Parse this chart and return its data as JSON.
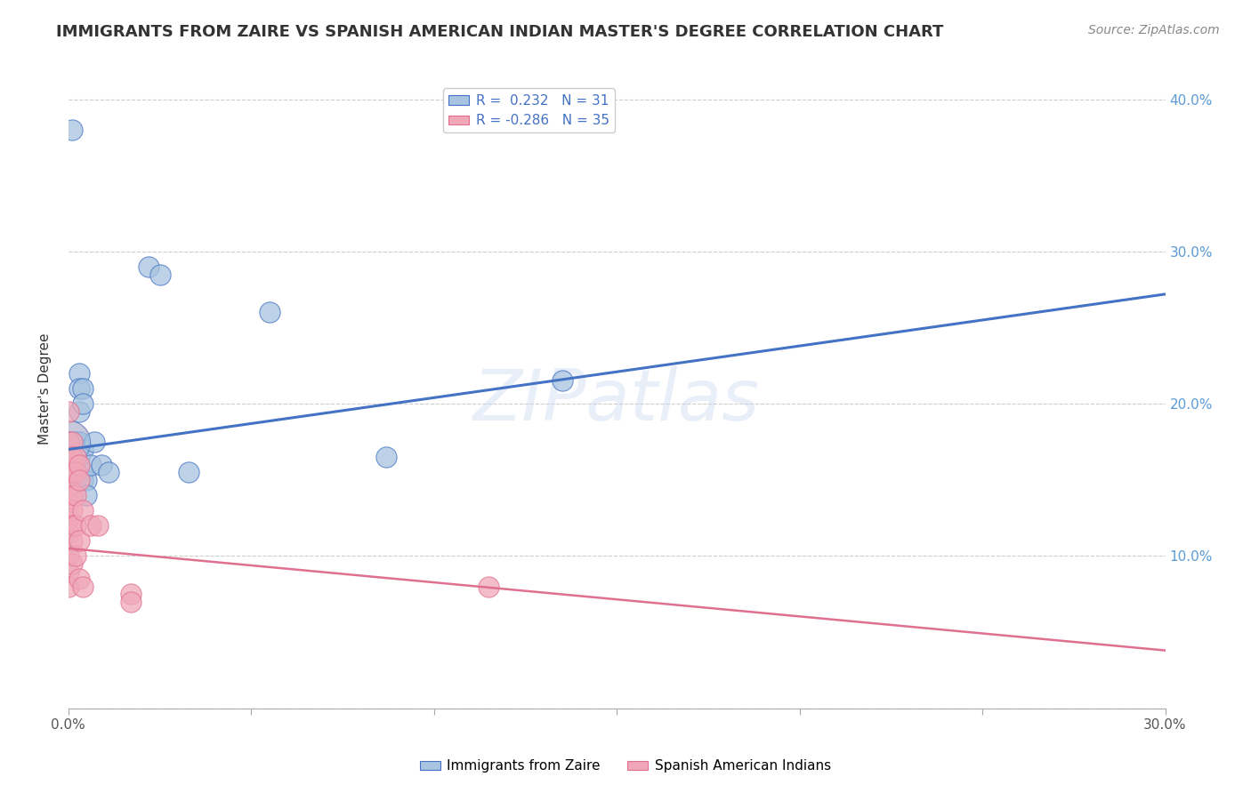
{
  "title": "IMMIGRANTS FROM ZAIRE VS SPANISH AMERICAN INDIAN MASTER'S DEGREE CORRELATION CHART",
  "source": "Source: ZipAtlas.com",
  "ylabel": "Master's Degree",
  "xlim": [
    0.0,
    0.3
  ],
  "ylim": [
    0.0,
    0.42
  ],
  "r_blue": 0.232,
  "n_blue": 31,
  "r_pink": -0.286,
  "n_pink": 35,
  "blue_color": "#a8c4e0",
  "pink_color": "#f0a8b8",
  "line_blue": "#4472c4",
  "line_pink": "#e07090",
  "legend_label_blue": "Immigrants from Zaire",
  "legend_label_pink": "Spanish American Indians",
  "blue_points": [
    [
      0.0,
      0.175
    ],
    [
      0.001,
      0.175
    ],
    [
      0.001,
      0.17
    ],
    [
      0.001,
      0.165
    ],
    [
      0.002,
      0.175
    ],
    [
      0.002,
      0.17
    ],
    [
      0.002,
      0.165
    ],
    [
      0.002,
      0.155
    ],
    [
      0.003,
      0.22
    ],
    [
      0.003,
      0.21
    ],
    [
      0.003,
      0.195
    ],
    [
      0.003,
      0.175
    ],
    [
      0.003,
      0.165
    ],
    [
      0.004,
      0.21
    ],
    [
      0.004,
      0.2
    ],
    [
      0.004,
      0.17
    ],
    [
      0.004,
      0.155
    ],
    [
      0.004,
      0.15
    ],
    [
      0.005,
      0.15
    ],
    [
      0.005,
      0.14
    ],
    [
      0.006,
      0.16
    ],
    [
      0.007,
      0.175
    ],
    [
      0.009,
      0.16
    ],
    [
      0.011,
      0.155
    ],
    [
      0.022,
      0.29
    ],
    [
      0.025,
      0.285
    ],
    [
      0.033,
      0.155
    ],
    [
      0.055,
      0.26
    ],
    [
      0.087,
      0.165
    ],
    [
      0.135,
      0.215
    ],
    [
      0.001,
      0.38
    ]
  ],
  "pink_points": [
    [
      0.0,
      0.195
    ],
    [
      0.0,
      0.175
    ],
    [
      0.0,
      0.165
    ],
    [
      0.0,
      0.155
    ],
    [
      0.0,
      0.145
    ],
    [
      0.0,
      0.135
    ],
    [
      0.0,
      0.125
    ],
    [
      0.0,
      0.115
    ],
    [
      0.0,
      0.1
    ],
    [
      0.0,
      0.09
    ],
    [
      0.0,
      0.08
    ],
    [
      0.001,
      0.175
    ],
    [
      0.001,
      0.165
    ],
    [
      0.001,
      0.155
    ],
    [
      0.001,
      0.14
    ],
    [
      0.001,
      0.13
    ],
    [
      0.001,
      0.12
    ],
    [
      0.001,
      0.11
    ],
    [
      0.001,
      0.095
    ],
    [
      0.002,
      0.165
    ],
    [
      0.002,
      0.155
    ],
    [
      0.002,
      0.14
    ],
    [
      0.002,
      0.12
    ],
    [
      0.002,
      0.1
    ],
    [
      0.003,
      0.16
    ],
    [
      0.003,
      0.15
    ],
    [
      0.003,
      0.11
    ],
    [
      0.003,
      0.085
    ],
    [
      0.004,
      0.13
    ],
    [
      0.004,
      0.08
    ],
    [
      0.006,
      0.12
    ],
    [
      0.008,
      0.12
    ],
    [
      0.017,
      0.075
    ],
    [
      0.017,
      0.07
    ],
    [
      0.115,
      0.08
    ]
  ],
  "blue_trendline": [
    [
      0.0,
      0.17
    ],
    [
      0.3,
      0.272
    ]
  ],
  "pink_trendline": [
    [
      0.0,
      0.105
    ],
    [
      0.3,
      0.038
    ]
  ]
}
